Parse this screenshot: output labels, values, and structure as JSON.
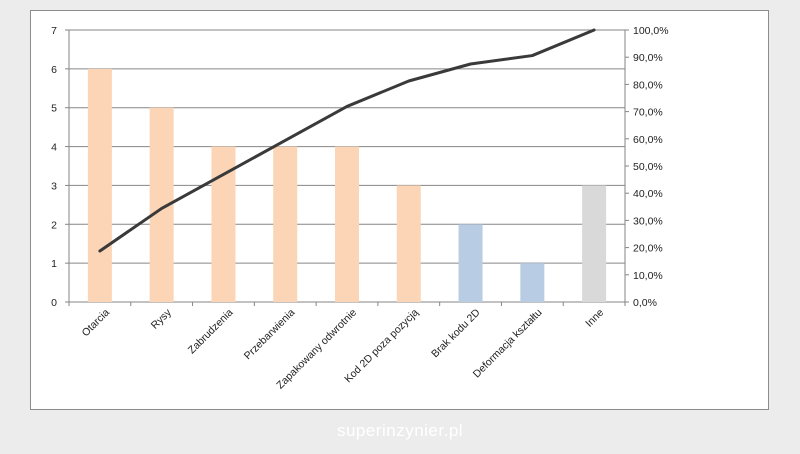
{
  "watermark": "superinzynier.pl",
  "chart_data": {
    "type": "bar",
    "title": "",
    "xlabel": "",
    "ylabel": "",
    "categories": [
      "Otarcia",
      "Rysy",
      "Zabrudzenia",
      "Przebarwienia",
      "Zapakowany odwrotnie",
      "Kod 2D poza pozycją",
      "Brak kodu 2D",
      "Deformacja kształtu",
      "Inne"
    ],
    "values": [
      6,
      5,
      4,
      4,
      4,
      3,
      2,
      1,
      3
    ],
    "bar_colors": [
      "#fbd5b5",
      "#fbd5b5",
      "#fbd5b5",
      "#fbd5b5",
      "#fbd5b5",
      "#fbd5b5",
      "#b8cce4",
      "#b8cce4",
      "#d9d9d9"
    ],
    "cumulative_percent": [
      18.75,
      34.4,
      46.9,
      59.4,
      71.9,
      81.25,
      87.5,
      90.6,
      100.0
    ],
    "line_color": "#3a3a3a",
    "ylim": [
      0,
      7
    ],
    "y_ticks": [
      "0",
      "1",
      "2",
      "3",
      "4",
      "5",
      "6",
      "7"
    ],
    "y2lim": [
      0,
      100
    ],
    "y2_ticks": [
      "0,0%",
      "10,0%",
      "20,0%",
      "30,0%",
      "40,0%",
      "50,0%",
      "60,0%",
      "70,0%",
      "80,0%",
      "90,0%",
      "100,0%"
    ],
    "grid": true,
    "legend": "none"
  }
}
